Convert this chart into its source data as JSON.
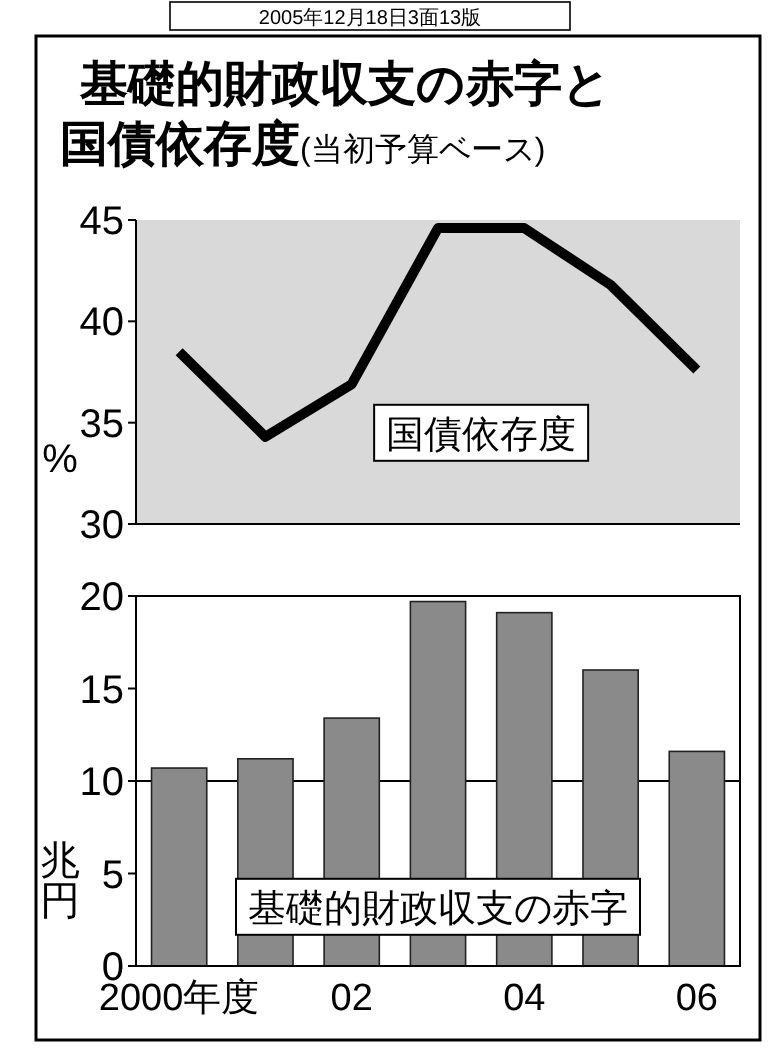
{
  "chart_data": [
    {
      "type": "line",
      "title": "基礎的財政収支の赤字と国債依存度",
      "subtitle": "(当初予算ベース)",
      "annotations": [
        "2005年12月18日3面13版"
      ],
      "ylabel": "%",
      "tick_labels": "y",
      "ylim": [
        30,
        45
      ],
      "yticks": [
        30,
        35,
        40,
        45
      ],
      "series": [
        {
          "name": "国債依存度",
          "color": "#000000",
          "values": [
            38.5,
            34.3,
            36.9,
            44.6,
            44.6,
            41.8,
            37.6
          ]
        }
      ]
    },
    {
      "type": "bar",
      "ylabel": "兆円",
      "categories": [
        "2000年度",
        null,
        "02",
        null,
        "04",
        null,
        "06"
      ],
      "ylim": [
        0,
        20
      ],
      "yticks": [
        0,
        5,
        10,
        15,
        20
      ],
      "ref_lines": [
        {
          "axis": "y",
          "value": 10,
          "color": "#000000"
        }
      ],
      "series": [
        {
          "name": "基礎的財政収支の赤字",
          "color": "#8a8a8a",
          "values": [
            10.7,
            11.2,
            13.4,
            19.7,
            19.1,
            16.0,
            11.6
          ]
        }
      ]
    }
  ]
}
